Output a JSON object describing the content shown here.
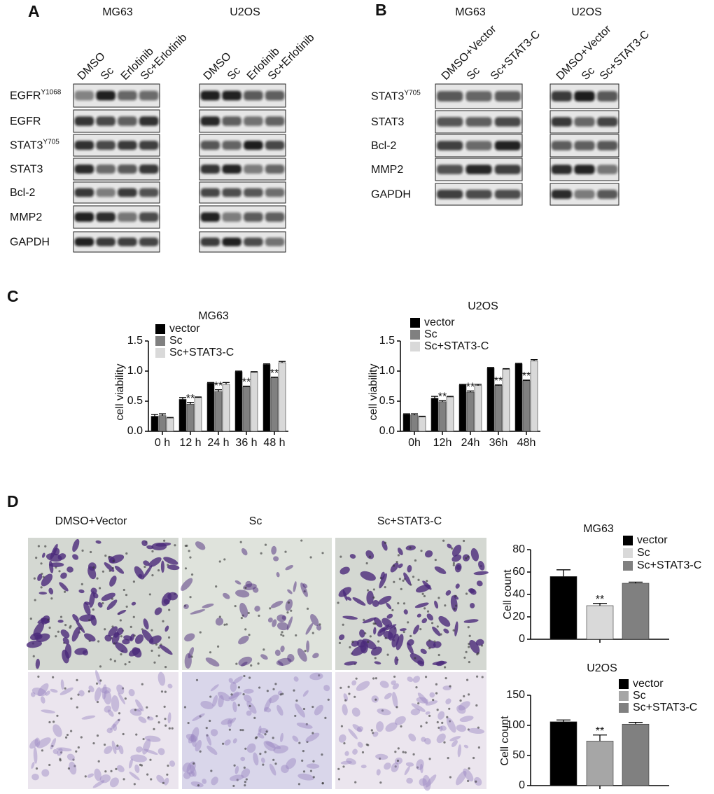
{
  "panel_labels": [
    "A",
    "B",
    "C",
    "D"
  ],
  "blots": [
    {
      "groups": [
        {
          "name": "MG63",
          "lanes": [
            "DMSO",
            "Sc",
            "Erlotinib",
            "Sc+Erlotinib"
          ]
        },
        {
          "name": "U2OS",
          "lanes": [
            "DMSO",
            "Sc",
            "Erlotinib",
            "Sc+Erlotinib"
          ]
        }
      ],
      "rows": [
        {
          "text": "EGFR",
          "sup": "Y1068"
        },
        {
          "text": "EGFR"
        },
        {
          "text": "STAT3",
          "sup": "Y705"
        },
        {
          "text": "STAT3"
        },
        {
          "text": "Bcl-2"
        },
        {
          "text": "MMP2"
        },
        {
          "text": "GAPDH"
        }
      ]
    },
    {
      "groups": [
        {
          "name": "MG63",
          "lanes": [
            "DMSO+Vector",
            "Sc",
            "Sc+STAT3-C"
          ]
        },
        {
          "name": "U2OS",
          "lanes": [
            "DMSO+Vector",
            "Sc",
            "Sc+STAT3-C"
          ]
        }
      ],
      "rows": [
        {
          "text": "STAT3",
          "sup": "Y705"
        },
        {
          "text": "STAT3"
        },
        {
          "text": "Bcl-2"
        },
        {
          "text": "MMP2"
        },
        {
          "text": "GAPDH"
        }
      ]
    }
  ],
  "micrographs": {
    "columns": [
      "DMSO+Vector",
      "Sc",
      "Sc+STAT3-C"
    ]
  },
  "chart_data": [
    {
      "type": "bar",
      "title": "MG63",
      "y_label": "cell viability",
      "categories": [
        "0 h",
        "12 h",
        "24 h",
        "36 h",
        "48 h"
      ],
      "series": [
        {
          "name": "vector",
          "color": "#000000",
          "values": [
            0.25,
            0.53,
            0.8,
            0.99,
            1.11
          ],
          "errors": [
            0.03,
            0.03,
            0.01,
            0.01,
            0.01
          ]
        },
        {
          "name": "Sc",
          "color": "#808080",
          "values": [
            0.26,
            0.45,
            0.66,
            0.74,
            0.89
          ],
          "errors": [
            0.03,
            0.03,
            0.03,
            0.01,
            0.01
          ],
          "annotations": [
            null,
            "**",
            "**",
            "**",
            "**"
          ]
        },
        {
          "name": "Sc+STAT3-C",
          "color": "#d9d9d9",
          "values": [
            0.22,
            0.56,
            0.78,
            0.98,
            1.14
          ],
          "errors": [
            0.01,
            0.01,
            0.03,
            0.01,
            0.02
          ]
        }
      ],
      "ylim": [
        0,
        1.5
      ],
      "yticks": [
        {
          "value": 0,
          "label": "0.0"
        },
        0.5,
        {
          "value": 1,
          "label": "1.0"
        },
        1.5
      ]
    },
    {
      "type": "bar",
      "title": "U2OS",
      "y_label": "cell viability",
      "categories": [
        "0h",
        "12h",
        "24h",
        "36h",
        "48h"
      ],
      "series": [
        {
          "name": "vector",
          "color": "#000000",
          "values": [
            0.28,
            0.55,
            0.77,
            1.05,
            1.12
          ],
          "errors": [
            0.01,
            0.03,
            0.01,
            0.01,
            0.01
          ]
        },
        {
          "name": "Sc",
          "color": "#808080",
          "values": [
            0.27,
            0.49,
            0.65,
            0.76,
            0.84
          ],
          "errors": [
            0.02,
            0.02,
            0.02,
            0.01,
            0.01
          ],
          "annotations": [
            null,
            "**",
            "**",
            "**",
            "**"
          ]
        },
        {
          "name": "Sc+STAT3-C",
          "color": "#d9d9d9",
          "values": [
            0.24,
            0.57,
            0.76,
            1.03,
            1.17
          ],
          "errors": [
            0.01,
            0.01,
            0.02,
            0.01,
            0.02
          ]
        }
      ],
      "ylim": [
        0,
        1.5
      ],
      "yticks": [
        {
          "value": 0,
          "label": "0.0"
        },
        0.5,
        {
          "value": 1,
          "label": "1.0"
        },
        1.5
      ]
    },
    {
      "type": "bar",
      "title": "MG63",
      "y_label": "Cell count",
      "categories": [
        null
      ],
      "series": [
        {
          "name": "vector",
          "color": "#000000",
          "values": [
            56
          ],
          "errors": [
            6
          ]
        },
        {
          "name": "Sc",
          "color": "#d9d9d9",
          "values": [
            30
          ],
          "errors": [
            2
          ],
          "annotations": [
            "**"
          ]
        },
        {
          "name": "Sc+STAT3-C",
          "color": "#808080",
          "values": [
            50
          ],
          "errors": [
            1
          ]
        }
      ],
      "ylim": [
        0,
        80
      ],
      "yticks": [
        0,
        20,
        40,
        60,
        80
      ]
    },
    {
      "type": "bar",
      "title": "U2OS",
      "y_label": "Cell count",
      "categories": [
        null
      ],
      "series": [
        {
          "name": "vector",
          "color": "#000000",
          "values": [
            106
          ],
          "errors": [
            3
          ]
        },
        {
          "name": "Sc",
          "color": "#a6a6a6",
          "values": [
            74
          ],
          "errors": [
            10
          ],
          "annotations": [
            "**"
          ]
        },
        {
          "name": "Sc+STAT3-C",
          "color": "#808080",
          "values": [
            102
          ],
          "errors": [
            3
          ]
        }
      ],
      "ylim": [
        0,
        150
      ],
      "yticks": [
        0,
        50,
        100,
        150
      ]
    }
  ]
}
